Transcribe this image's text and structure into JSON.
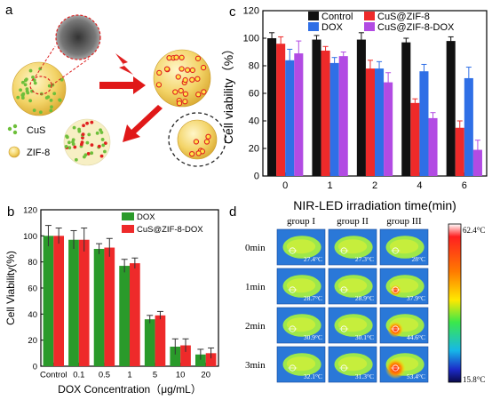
{
  "panels": {
    "a": {
      "label": "a",
      "legend": [
        {
          "text": "CuS",
          "color": "#6dbf3a"
        },
        {
          "text": "ZIF-8",
          "color": "#f2d04a"
        }
      ]
    },
    "d": {
      "label": "d",
      "groups": [
        "group I",
        "group II",
        "group III"
      ],
      "times": [
        "0min",
        "1min",
        "2min",
        "3min"
      ],
      "temps": [
        [
          "27.4°C",
          "27.3°C",
          "28°C"
        ],
        [
          "28.7°C",
          "28.9°C",
          "37.9°C"
        ],
        [
          "30.9°C",
          "30.1°C",
          "44.6°C"
        ],
        [
          "32.1°C",
          "31.3°C",
          "53.4°C"
        ]
      ],
      "colorbar": {
        "max": "62.4°C",
        "min": "15.8°C"
      }
    }
  },
  "chart_data": [
    {
      "panel": "c",
      "type": "bar",
      "xlabel": "NIR-LED irradiation time(min)",
      "ylabel": "Cell viability（%）",
      "ylim": [
        0,
        120
      ],
      "yticks": [
        0,
        20,
        40,
        60,
        80,
        100,
        120
      ],
      "categories": [
        "0",
        "1",
        "2",
        "4",
        "6"
      ],
      "legend_position": "top",
      "series": [
        {
          "name": "Control",
          "color": "#111111",
          "values": [
            100,
            99,
            99,
            97,
            98
          ],
          "errors": [
            4,
            3,
            5,
            3,
            3
          ]
        },
        {
          "name": "CuS@ZIF-8",
          "color": "#ee2a2a",
          "values": [
            96,
            91,
            78,
            53,
            35
          ],
          "errors": [
            5,
            3,
            6,
            3,
            5
          ]
        },
        {
          "name": "DOX",
          "color": "#2f6fe6",
          "values": [
            84,
            82,
            78,
            76,
            71
          ],
          "errors": [
            8,
            4,
            5,
            5,
            8
          ]
        },
        {
          "name": "CuS@ZIF-8-DOX",
          "color": "#b24be3",
          "values": [
            89,
            87,
            68,
            42,
            19
          ],
          "errors": [
            9,
            3,
            7,
            4,
            7
          ]
        }
      ]
    },
    {
      "panel": "b",
      "type": "bar",
      "xlabel": "DOX Concentration（μg/mL）",
      "ylabel": "Cell Viability(%)",
      "ylim": [
        0,
        120
      ],
      "yticks": [
        0,
        20,
        40,
        60,
        80,
        100,
        120
      ],
      "categories": [
        "Control",
        "0.1",
        "0.5",
        "1",
        "5",
        "10",
        "20"
      ],
      "legend_position": "top-right",
      "series": [
        {
          "name": "DOX",
          "color": "#2a9a2a",
          "values": [
            100,
            97,
            90,
            77,
            36,
            15,
            9
          ],
          "errors": [
            8,
            7,
            4,
            5,
            3,
            6,
            4
          ]
        },
        {
          "name": "CuS@ZIF-8-DOX",
          "color": "#ee2a2a",
          "values": [
            100,
            97,
            91,
            79,
            39,
            16,
            10
          ],
          "errors": [
            6,
            9,
            7,
            4,
            3,
            5,
            4
          ]
        }
      ]
    }
  ]
}
